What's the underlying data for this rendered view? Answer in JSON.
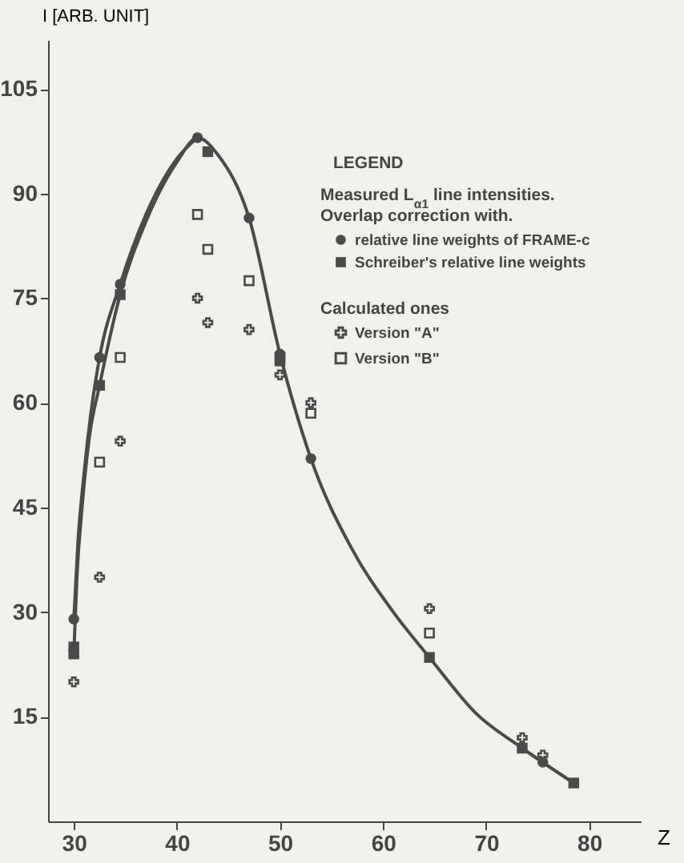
{
  "chart_data": {
    "type": "scatter",
    "ylabel": "I [ARB. UNIT]",
    "xlabel": "Z",
    "legend_title": "LEGEND",
    "annotations": [
      "Measured L$_{α1}$ line intensities.\nOverlap correction with.",
      "Calculated ones"
    ],
    "xlim": [
      27.5,
      85
    ],
    "xticks": [
      30,
      40,
      50,
      60,
      70,
      80
    ],
    "ylim": [
      0,
      112
    ],
    "yticks": [
      15,
      30,
      45,
      60,
      75,
      90,
      105
    ],
    "legend": "top right",
    "series": [
      {
        "type": "line",
        "color": "#4a4a4a",
        "x": [
          30,
          30.3,
          30.8,
          31.5,
          32.5,
          34.5,
          37,
          40,
          42,
          44,
          47,
          50,
          53,
          57,
          61,
          64.5,
          69,
          73.5,
          78.5
        ],
        "values": [
          24,
          35,
          45,
          55,
          62.5,
          75.5,
          86,
          94.5,
          98,
          95.5,
          86.5,
          67,
          52,
          39,
          30,
          23.5,
          15.5,
          10.5,
          5.5
        ]
      },
      {
        "type": "line",
        "color": "#4a4a4a",
        "x": [
          30,
          30.4,
          31,
          31.7,
          32.5,
          34.5,
          37,
          40,
          42
        ],
        "values": [
          29,
          40,
          50,
          59,
          66.5,
          77,
          87,
          95,
          98
        ]
      },
      {
        "name": "relative line weights of FRAME-c",
        "marker": "circle",
        "color": "#4a4a4a",
        "x": [
          30,
          32.5,
          34.5,
          42,
          47,
          50,
          53,
          75.5
        ],
        "values": [
          29,
          66.5,
          77,
          98,
          86.5,
          67,
          52,
          8.5
        ]
      },
      {
        "name": "Schreiber's relative line weights",
        "marker": "square",
        "color": "#4a4a4a",
        "x": [
          30,
          30,
          32.5,
          34.5,
          43,
          50,
          64.5,
          73.5,
          78.5
        ],
        "values": [
          25,
          24,
          62.5,
          75.5,
          96,
          66,
          23.5,
          10.5,
          5.5
        ]
      },
      {
        "name": "Version \"A\"",
        "marker": "cross",
        "color": "#4a4a4a",
        "x": [
          30,
          32.5,
          34.5,
          42,
          43,
          47,
          50,
          53,
          64.5,
          73.5,
          75.5
        ],
        "values": [
          20,
          35,
          54.5,
          75,
          71.5,
          70.5,
          64,
          60,
          30.5,
          12,
          9.5
        ]
      },
      {
        "name": "Version \"B\"",
        "marker": "square",
        "color": "#4a4a4a",
        "x": [
          32.5,
          34.5,
          42,
          43,
          47,
          50,
          53,
          64.5
        ],
        "values": [
          51.5,
          66.5,
          87,
          82,
          77.5,
          66.5,
          58.5,
          27
        ]
      }
    ]
  }
}
